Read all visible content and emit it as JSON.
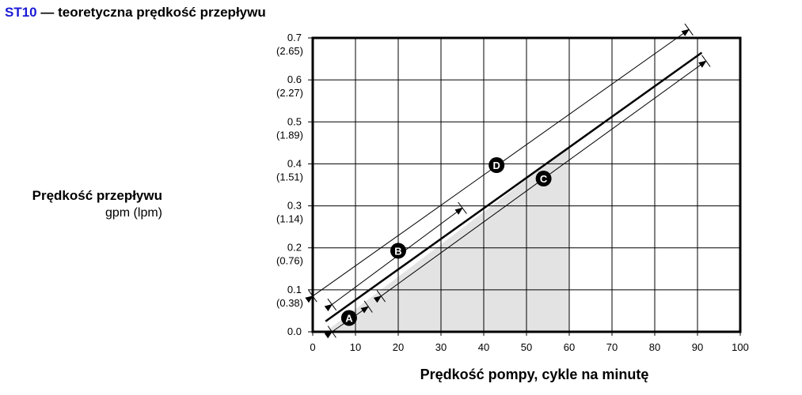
{
  "title": {
    "code": "ST10",
    "text": " — teoretyczna prędkość przepływu"
  },
  "chart_data": {
    "type": "line",
    "title": "ST10 — teoretyczna prędkość przepływu",
    "xlabel": "Prędkość pompy, cykle na minutę",
    "ylabel": "Prędkość przepływu",
    "ylabel_units": "gpm (lpm)",
    "xlim": [
      0,
      100
    ],
    "ylim": [
      0,
      0.7
    ],
    "x_ticks": [
      "0",
      "10",
      "20",
      "30",
      "40",
      "50",
      "60",
      "70",
      "80",
      "90",
      "100"
    ],
    "y_ticks": [
      {
        "value": 0.0,
        "primary": "0.0",
        "secondary": ""
      },
      {
        "value": 0.1,
        "primary": "0.1",
        "secondary": "(0.38)"
      },
      {
        "value": 0.2,
        "primary": "0.2",
        "secondary": "(0.76)"
      },
      {
        "value": 0.3,
        "primary": "0.3",
        "secondary": "(1.14)"
      },
      {
        "value": 0.4,
        "primary": "0.4",
        "secondary": "(1.51)"
      },
      {
        "value": 0.5,
        "primary": "0.5",
        "secondary": "(1.89)"
      },
      {
        "value": 0.6,
        "primary": "0.6",
        "secondary": "(2.27)"
      },
      {
        "value": 0.7,
        "primary": "0.7",
        "secondary": "(2.65)"
      }
    ],
    "grid": true,
    "series": [
      {
        "x": [
          3,
          91
        ],
        "y": [
          0.025,
          0.665
        ]
      }
    ],
    "shaded_region": {
      "x": [
        3,
        60,
        60,
        3
      ],
      "y": [
        0.0,
        0.0,
        0.44,
        0.0
      ]
    },
    "range_arrows": [
      {
        "label": "A",
        "x": [
          4.5,
          13
        ],
        "y": [
          0.0,
          0.06
        ]
      },
      {
        "label": "B",
        "x": [
          4.5,
          35
        ],
        "y": [
          0.065,
          0.295
        ]
      },
      {
        "label": "C",
        "x": [
          16,
          92
        ],
        "y": [
          0.085,
          0.645
        ]
      },
      {
        "label": "D",
        "x": [
          0,
          88
        ],
        "y": [
          0.085,
          0.72
        ]
      }
    ],
    "markers": [
      {
        "label": "A",
        "x": 8.5,
        "y": 0.033
      },
      {
        "label": "B",
        "x": 20,
        "y": 0.193
      },
      {
        "label": "C",
        "x": 54,
        "y": 0.365
      },
      {
        "label": "D",
        "x": 43,
        "y": 0.397
      }
    ],
    "colors": {
      "shade": "#e3e3e3",
      "line": "#000000",
      "grid": "#000000",
      "title_code": "#1a1ad6"
    }
  }
}
